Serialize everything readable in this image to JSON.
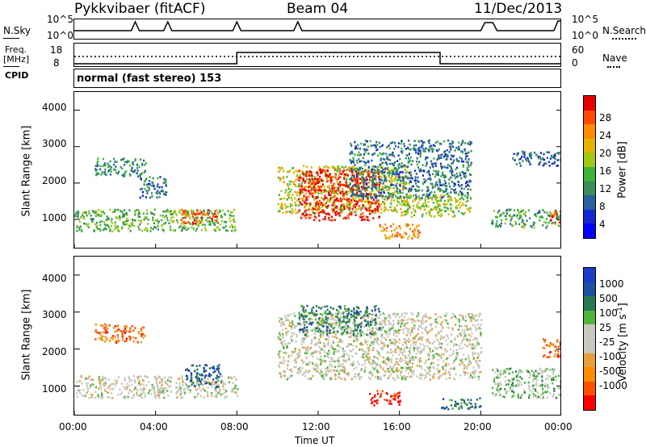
{
  "header": {
    "station": "Pykkvibaer (fitACF)",
    "beam": "Beam 04",
    "date": "11/Dec/2013"
  },
  "nsky_panel": {
    "left_label": "N.Sky",
    "right_label": "N.Search",
    "ticks_left": [
      "10^5",
      "10^0"
    ],
    "ticks_right": [
      "10^5",
      "10^0"
    ]
  },
  "freq_panel": {
    "left_label_1": "Freq.",
    "left_label_2": "[MHz]",
    "right_label": "Nave",
    "ticks_left": [
      "18",
      "8"
    ],
    "ticks_right": [
      "60",
      "0"
    ],
    "freq_segments": [
      {
        "start_h": 0,
        "end_h": 8,
        "level": 0.25
      },
      {
        "start_h": 8,
        "end_h": 18,
        "level": 0.75
      },
      {
        "start_h": 18,
        "end_h": 24,
        "level": 0.25
      }
    ]
  },
  "cpid_panel": {
    "label": "CPID",
    "value": "normal (fast stereo) 153"
  },
  "chart_data": [
    {
      "type": "heatmap",
      "title": "Power",
      "ylabel": "Slant Range [km]",
      "xlabel": "Time UT",
      "x_ticks": [
        "00:00",
        "04:00",
        "08:00",
        "12:00",
        "16:00",
        "20:00",
        "00:00"
      ],
      "y_ticks": [
        "1000",
        "2000",
        "3000",
        "4000"
      ],
      "xlim": [
        0,
        24
      ],
      "ylim": [
        180,
        4500
      ],
      "colorbar_label": "Power [dB]",
      "colorbar_ticks": [
        "28",
        "24",
        "20",
        "16",
        "12",
        "8",
        "4"
      ],
      "colorbar_colors": [
        "#e60000",
        "#ff4a00",
        "#ff8c00",
        "#e6b400",
        "#a0c814",
        "#3cb43c",
        "#3c8c5a",
        "#2860a0",
        "#1428d2",
        "#0000ff"
      ],
      "echo_regions": [
        {
          "t0": 0.0,
          "t1": 8.0,
          "r0": 700,
          "r1": 1300,
          "level": 0.45
        },
        {
          "t0": 5.2,
          "t1": 7.0,
          "r0": 900,
          "r1": 1300,
          "level": 0.85
        },
        {
          "t0": 1.0,
          "t1": 3.5,
          "r0": 2200,
          "r1": 2700,
          "level": 0.35
        },
        {
          "t0": 3.2,
          "t1": 4.5,
          "r0": 1600,
          "r1": 2200,
          "level": 0.3
        },
        {
          "t0": 10.0,
          "t1": 16.5,
          "r0": 1200,
          "r1": 2500,
          "level": 0.6
        },
        {
          "t0": 11.0,
          "t1": 15.0,
          "r0": 1000,
          "r1": 2400,
          "level": 0.95
        },
        {
          "t0": 15.0,
          "t1": 17.0,
          "r0": 500,
          "r1": 900,
          "level": 0.75
        },
        {
          "t0": 13.5,
          "t1": 19.5,
          "r0": 1600,
          "r1": 3200,
          "level": 0.3
        },
        {
          "t0": 16.0,
          "t1": 19.5,
          "r0": 1100,
          "r1": 1700,
          "level": 0.55
        },
        {
          "t0": 20.5,
          "t1": 24.0,
          "r0": 800,
          "r1": 1300,
          "level": 0.4
        },
        {
          "t0": 23.4,
          "t1": 24.0,
          "r0": 900,
          "r1": 1300,
          "level": 0.85
        },
        {
          "t0": 21.5,
          "t1": 24.0,
          "r0": 2500,
          "r1": 2900,
          "level": 0.25
        }
      ]
    },
    {
      "type": "heatmap",
      "title": "Velocity",
      "ylabel": "Slant Range [km]",
      "xlabel": "Time UT",
      "x_ticks": [
        "00:00",
        "04:00",
        "08:00",
        "12:00",
        "16:00",
        "20:00",
        "00:00"
      ],
      "y_ticks": [
        "1000",
        "2000",
        "3000",
        "4000"
      ],
      "xlim": [
        0,
        24
      ],
      "ylim": [
        180,
        4500
      ],
      "colorbar_label": "Velocity [m s^-1]",
      "colorbar_ticks": [
        "1000",
        "500",
        "100",
        "25",
        "-25",
        "-100",
        "-500",
        "-1000"
      ],
      "colorbar_colors": [
        "#1e3cc8",
        "#1e50a0",
        "#287850",
        "#50b43c",
        "#c8c8c0",
        "#c8c8c0",
        "#e6a03c",
        "#ff8c00",
        "#ff5000",
        "#ff0000"
      ],
      "echo_regions": [
        {
          "t0": 0.0,
          "t1": 8.0,
          "r0": 700,
          "r1": 1300,
          "level": 0.5
        },
        {
          "t0": 5.4,
          "t1": 7.2,
          "r0": 1000,
          "r1": 1600,
          "level": 0.85
        },
        {
          "t0": 1.0,
          "t1": 3.5,
          "r0": 2200,
          "r1": 2700,
          "level": 0.2
        },
        {
          "t0": 10.0,
          "t1": 20.0,
          "r0": 1200,
          "r1": 3000,
          "level": 0.5
        },
        {
          "t0": 14.5,
          "t1": 16.0,
          "r0": 500,
          "r1": 900,
          "level": 0.05
        },
        {
          "t0": 11.0,
          "t1": 15.0,
          "r0": 2400,
          "r1": 3200,
          "level": 0.75
        },
        {
          "t0": 18.0,
          "t1": 20.0,
          "r0": 400,
          "r1": 700,
          "level": 0.8
        },
        {
          "t0": 20.5,
          "t1": 24.0,
          "r0": 700,
          "r1": 1500,
          "level": 0.6
        },
        {
          "t0": 23.0,
          "t1": 24.0,
          "r0": 1800,
          "r1": 2300,
          "level": 0.2
        }
      ]
    }
  ]
}
